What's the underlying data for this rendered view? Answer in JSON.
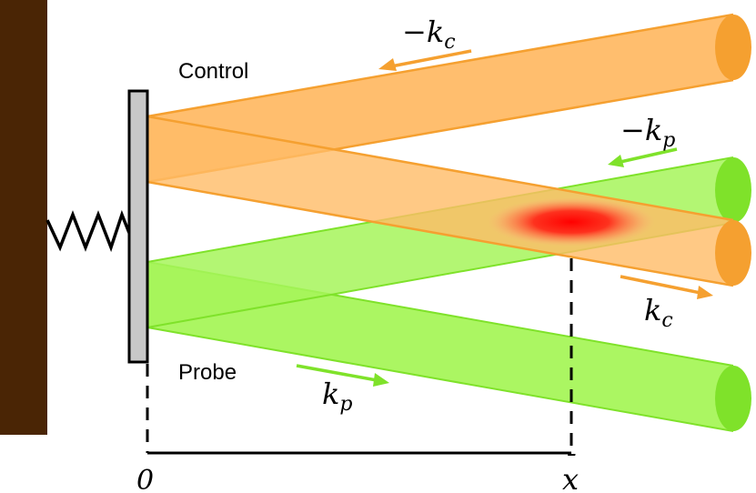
{
  "labels": {
    "control": "Control",
    "probe": "Probe",
    "neg_kc_sign": "−",
    "neg_kc_k": "k",
    "neg_kc_sub": "c",
    "neg_kp_sign": "−",
    "neg_kp_k": "k",
    "neg_kp_sub": "p",
    "kc_k": "k",
    "kc_sub": "c",
    "kp_k": "k",
    "kp_sub": "p",
    "origin": "0",
    "xbar": "x",
    "xbar_accent": "¯"
  },
  "colors": {
    "wall": "#4a2505",
    "mirror_fill": "#c8c8c8",
    "control_beam": "#ffbb66",
    "control_edge": "#f5a030",
    "control_arrow": "#f5a030",
    "probe_beam": "#a6f55a",
    "probe_edge": "#7fe22a",
    "probe_arrow": "#7fe22a",
    "hotspot": "#ff1a10",
    "spring": "#000000"
  }
}
